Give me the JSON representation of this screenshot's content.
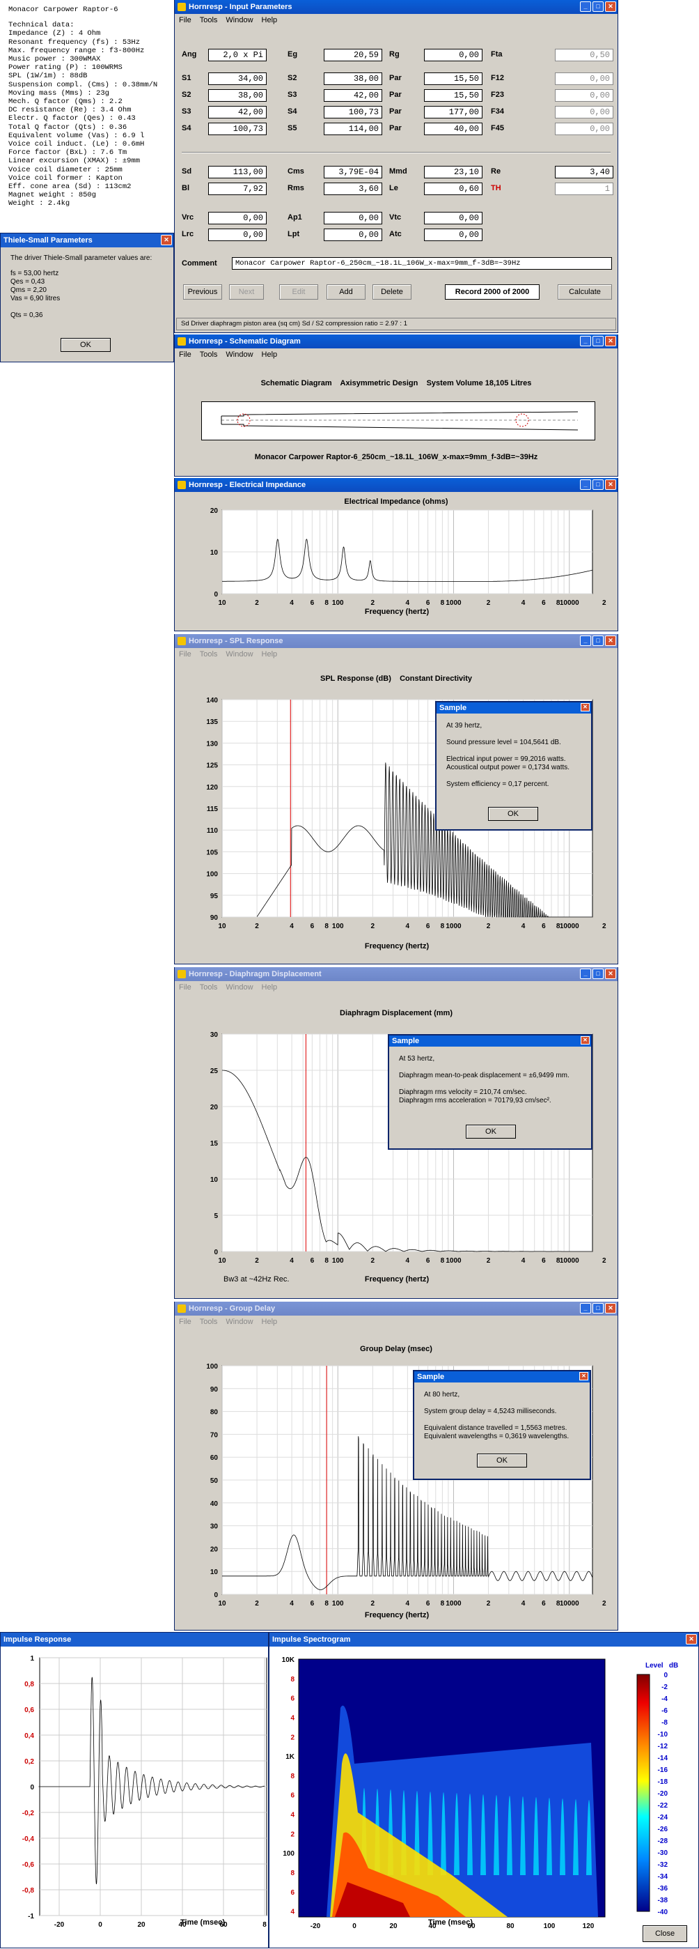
{
  "specs": {
    "title": "Monacor Carpower Raptor-6",
    "lines": [
      "Technical data:",
      "Impedance (Z) : 4 Ohm",
      "Resonant frequency (fs) : 53Hz",
      "Max. frequency range : f3-800Hz",
      "Music power : 300WMAX",
      "Power rating (P) : 100WRMS",
      "SPL (1W/1m) : 88dB",
      "Suspension compl. (Cms) : 0.38mm/N",
      "Moving mass (Mms) : 23g",
      "Mech. Q factor (Qms) : 2.2",
      "DC resistance (Re) : 3.4 Ohm",
      "Electr. Q factor (Qes) : 0.43",
      "Total Q factor (Qts) : 0.36",
      "Equivalent volume (Vas) : 6.9 l",
      "Voice coil induct. (Le) : 0.6mH",
      "Force factor (BxL) : 7.6 Tm",
      "Linear excursion (XMAX) : ±9mm",
      "Voice coil diameter : 25mm",
      "Voice coil former : Kapton",
      "Eff. cone area (Sd) : 113cm2",
      "Magnet weight : 850g",
      "Weight : 2.4kg"
    ]
  },
  "ts": {
    "title": "Thiele-Small Parameters",
    "intro": "The driver Thiele-Small parameter values are:",
    "lines": [
      "fs = 53,00 hertz",
      "Qes = 0,43",
      "Qms = 2,20",
      "Vas = 6,90 litres"
    ],
    "qts": "Qts = 0,36",
    "ok": "OK"
  },
  "input": {
    "title": "Hornresp - Input Parameters",
    "menu": [
      "File",
      "Tools",
      "Window",
      "Help"
    ],
    "rows": [
      {
        "l1": "Ang",
        "v1": "2,0 x Pi",
        "l2": "Eg",
        "v2": "20,59",
        "l3": "Rg",
        "v3": "0,00",
        "l4": "Fta",
        "v4": "0,50"
      },
      {
        "l1": "S1",
        "v1": "34,00",
        "l2": "S2",
        "v2": "38,00",
        "l3": "Par",
        "v3": "15,50",
        "l4": "F12",
        "v4": "0,00"
      },
      {
        "l1": "S2",
        "v1": "38,00",
        "l2": "S3",
        "v2": "42,00",
        "l3": "Par",
        "v3": "15,50",
        "l4": "F23",
        "v4": "0,00"
      },
      {
        "l1": "S3",
        "v1": "42,00",
        "l2": "S4",
        "v2": "100,73",
        "l3": "Par",
        "v3": "177,00",
        "l4": "F34",
        "v4": "0,00"
      },
      {
        "l1": "S4",
        "v1": "100,73",
        "l2": "S5",
        "v2": "114,00",
        "l3": "Par",
        "v3": "40,00",
        "l4": "F45",
        "v4": "0,00"
      },
      {
        "l1": "Sd",
        "v1": "113,00",
        "l2": "Cms",
        "v2": "3,79E-04",
        "l3": "Mmd",
        "v3": "23,10",
        "l4": "Re",
        "v4": "3,40"
      },
      {
        "l1": "Bl",
        "v1": "7,92",
        "l2": "Rms",
        "v2": "3,60",
        "l3": "Le",
        "v3": "0,60",
        "l4": "TH",
        "v4": "1"
      },
      {
        "l1": "Vrc",
        "v1": "0,00",
        "l2": "Ap1",
        "v2": "0,00",
        "l3": "Vtc",
        "v3": "0,00",
        "l4": "",
        "v4": ""
      },
      {
        "l1": "Lrc",
        "v1": "0,00",
        "l2": "Lpt",
        "v2": "0,00",
        "l3": "Atc",
        "v3": "0,00",
        "l4": "",
        "v4": ""
      }
    ],
    "comment_label": "Comment",
    "comment": "Monacor Carpower Raptor-6_250cm_~18.1L_106W_x-max=9mm_f-3dB=~39Hz",
    "buttons": {
      "prev": "Previous",
      "next": "Next",
      "edit": "Edit",
      "add": "Add",
      "del": "Delete",
      "record": "Record 2000 of 2000",
      "calc": "Calculate"
    },
    "status": "Sd  Driver diaphragm piston area (sq cm)    Sd / S2 compression ratio = 2.97 : 1"
  },
  "schematic": {
    "title": "Hornresp - Schematic Diagram",
    "menu": [
      "File",
      "Tools",
      "Window",
      "Help"
    ],
    "heading": "Schematic Diagram    Axisymmetric Design    System Volume 18,105 Litres",
    "caption": "Monacor Carpower Raptor-6_250cm_~18.1L_106W_x-max=9mm_f-3dB=~39Hz"
  },
  "impedance": {
    "title": "Hornresp - Electrical Impedance",
    "menu": [
      "File",
      "Tools",
      "Window",
      "Help"
    ],
    "heading": "Electrical Impedance (ohms)",
    "xlabel": "Frequency (hertz)",
    "yticks": [
      "20",
      "10",
      "0"
    ],
    "xticks": [
      "10",
      "2",
      "4",
      "6",
      "8",
      "100",
      "2",
      "4",
      "6",
      "8",
      "1000",
      "2",
      "4",
      "6",
      "8",
      "10000",
      "2"
    ]
  },
  "spl": {
    "title": "Hornresp - SPL Response",
    "menu": [
      "File",
      "Tools",
      "Window",
      "Help"
    ],
    "heading": "SPL Response (dB)    Constant Directivity",
    "xlabel": "Frequency (hertz)",
    "yticks": [
      "140",
      "135",
      "130",
      "125",
      "120",
      "115",
      "110",
      "105",
      "100",
      "95",
      "90"
    ],
    "xticks": [
      "10",
      "2",
      "4",
      "6",
      "8",
      "100",
      "2",
      "4",
      "6",
      "8",
      "1000",
      "2",
      "4",
      "6",
      "8",
      "10000",
      "2"
    ],
    "sample": {
      "title": "Sample",
      "lines": [
        "At 39 hertz,",
        "",
        "Sound pressure level = 104,5641 dB.",
        "",
        "Electrical input power = 99,2016 watts.",
        "Acoustical output power = 0,1734 watts.",
        "",
        "System efficiency = 0,17 percent."
      ],
      "ok": "OK"
    }
  },
  "disp": {
    "title": "Hornresp - Diaphragm Displacement",
    "menu": [
      "File",
      "Tools",
      "Window",
      "Help"
    ],
    "heading": "Diaphragm Displacement (mm)",
    "xlabel": "Frequency (hertz)",
    "note": "Bw3 at ~42Hz Rec.",
    "yticks": [
      "30",
      "25",
      "20",
      "15",
      "10",
      "5",
      "0"
    ],
    "xticks": [
      "10",
      "2",
      "4",
      "6",
      "8",
      "100",
      "2",
      "4",
      "6",
      "8",
      "1000",
      "2",
      "4",
      "6",
      "8",
      "10000",
      "2"
    ],
    "sample": {
      "title": "Sample",
      "lines": [
        "At 53 hertz,",
        "",
        "Diaphragm mean-to-peak displacement = ±6,9499 mm.",
        "",
        "Diaphragm rms velocity = 210,74 cm/sec.",
        "Diaphragm rms acceleration = 70179,93 cm/sec².",
        ""
      ],
      "ok": "OK"
    }
  },
  "gd": {
    "title": "Hornresp - Group Delay",
    "menu": [
      "File",
      "Tools",
      "Window",
      "Help"
    ],
    "heading": "Group Delay (msec)",
    "xlabel": "Frequency (hertz)",
    "yticks": [
      "100",
      "90",
      "80",
      "70",
      "60",
      "50",
      "40",
      "30",
      "20",
      "10",
      "0"
    ],
    "xticks": [
      "10",
      "2",
      "4",
      "6",
      "8",
      "100",
      "2",
      "4",
      "6",
      "8",
      "1000",
      "2",
      "4",
      "6",
      "8",
      "10000",
      "2"
    ],
    "sample": {
      "title": "Sample",
      "lines": [
        "At 80 hertz,",
        "",
        "System group delay = 4,5243 milliseconds.",
        "",
        "Equivalent distance travelled = 1,5563 metres.",
        "Equivalent wavelengths = 0,3619 wavelengths."
      ],
      "ok": "OK"
    }
  },
  "impulse": {
    "title": "Impulse Response",
    "yticks": [
      "1",
      "0,8",
      "0,6",
      "0,4",
      "0,2",
      "0",
      "-0,2",
      "-0,4",
      "-0,6",
      "-0,8",
      "-1"
    ],
    "xticks": [
      "-20",
      "0",
      "20",
      "40",
      "60",
      "8"
    ],
    "xlabel": "Time (msec)"
  },
  "spectro": {
    "title": "Impulse Spectrogram",
    "yticks": [
      "10K",
      "8",
      "6",
      "4",
      "2",
      "1K",
      "8",
      "6",
      "4",
      "2",
      "100",
      "8",
      "6",
      "4"
    ],
    "xticks": [
      "-20",
      "0",
      "20",
      "40",
      "60",
      "80",
      "100",
      "120"
    ],
    "xlabel": "Time (msec)",
    "legend_title": "Level   dB",
    "legend": [
      "0",
      "-2",
      "-4",
      "-6",
      "-8",
      "-10",
      "-12",
      "-14",
      "-16",
      "-18",
      "-20",
      "-22",
      "-24",
      "-26",
      "-28",
      "-30",
      "-32",
      "-34",
      "-36",
      "-38",
      "-40"
    ],
    "close": "Close"
  }
}
